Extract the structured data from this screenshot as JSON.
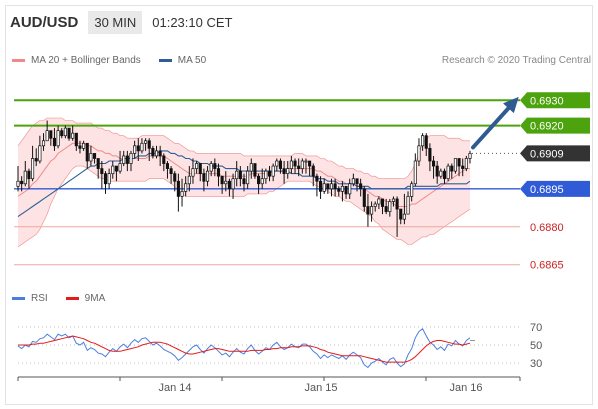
{
  "header": {
    "pair": "AUD/USD",
    "timeframe": "30 MIN",
    "clock": "01:23:10 CET"
  },
  "legend": {
    "bb": "MA 20 + Bollinger Bands",
    "ma50": "MA 50",
    "rsi": "RSI",
    "ma9": "9MA",
    "credit": "Research © 2020 Trading Central"
  },
  "colors": {
    "resistance": "#4ca30d",
    "support": "#f0a8a0",
    "pivot": "#2f5bd6",
    "current": "#333333",
    "candle": "#111111",
    "bb_fill": "#fde3e3",
    "bb_line": "#f08a8a",
    "ma50": "#2d5f96",
    "rsi": "#4a7fe0",
    "rsi_ma": "#e31b1b",
    "arrow": "#2f5a92"
  },
  "chart_data": [
    {
      "type": "candlestick",
      "ylim": [
        0.6855,
        0.694
      ],
      "x_ticks": [
        "Jan 14",
        "Jan 15",
        "Jan 16"
      ],
      "levels": [
        {
          "value": 0.693,
          "label": "0.6930",
          "kind": "resistance"
        },
        {
          "value": 0.692,
          "label": "0.6920",
          "kind": "resistance"
        },
        {
          "value": 0.6909,
          "label": "0.6909",
          "kind": "current"
        },
        {
          "value": 0.6895,
          "label": "0.6895",
          "kind": "pivot"
        },
        {
          "value": 0.688,
          "label": "0.6880",
          "kind": "support"
        },
        {
          "value": 0.6865,
          "label": "0.6865",
          "kind": "support"
        }
      ],
      "close": [
        0.6898,
        0.6897,
        0.6902,
        0.6899,
        0.6907,
        0.6906,
        0.6912,
        0.6914,
        0.6918,
        0.6915,
        0.6912,
        0.6918,
        0.6916,
        0.6919,
        0.6915,
        0.6917,
        0.6912,
        0.6911,
        0.6913,
        0.6906,
        0.6909,
        0.6907,
        0.6903,
        0.6901,
        0.6897,
        0.6901,
        0.6904,
        0.6902,
        0.6905,
        0.6908,
        0.6905,
        0.6909,
        0.6912,
        0.691,
        0.6913,
        0.6914,
        0.6911,
        0.6908,
        0.691,
        0.6908,
        0.6905,
        0.6903,
        0.6901,
        0.6898,
        0.6892,
        0.6894,
        0.6897,
        0.69,
        0.6903,
        0.6905,
        0.6901,
        0.6898,
        0.6902,
        0.6905,
        0.6903,
        0.69,
        0.6897,
        0.6898,
        0.6895,
        0.6899,
        0.6902,
        0.6899,
        0.6897,
        0.6902,
        0.6905,
        0.69,
        0.6897,
        0.6899,
        0.6902,
        0.69,
        0.6904,
        0.6906,
        0.6903,
        0.6901,
        0.6903,
        0.6906,
        0.6904,
        0.6903,
        0.6906,
        0.6906,
        0.6904,
        0.69,
        0.6898,
        0.6894,
        0.6897,
        0.6895,
        0.6897,
        0.6895,
        0.6894,
        0.6896,
        0.6893,
        0.6897,
        0.6899,
        0.6897,
        0.6895,
        0.6888,
        0.6885,
        0.6888,
        0.6889,
        0.6891,
        0.6888,
        0.6886,
        0.689,
        0.6891,
        0.6887,
        0.6883,
        0.6885,
        0.6892,
        0.6897,
        0.6906,
        0.6912,
        0.6916,
        0.6911,
        0.6906,
        0.6904,
        0.69,
        0.6902,
        0.6899,
        0.6904,
        0.6902,
        0.6907,
        0.6904,
        0.6903,
        0.6907,
        0.6909
      ],
      "high": [
        0.6904,
        0.69,
        0.6906,
        0.6903,
        0.6912,
        0.6911,
        0.6916,
        0.6917,
        0.6922,
        0.6918,
        0.6919,
        0.692,
        0.6919,
        0.692,
        0.6919,
        0.692,
        0.6913,
        0.6914,
        0.6914,
        0.691,
        0.6912,
        0.6909,
        0.6907,
        0.6906,
        0.6902,
        0.6903,
        0.6906,
        0.6904,
        0.691,
        0.691,
        0.691,
        0.691,
        0.6914,
        0.6915,
        0.6915,
        0.6915,
        0.6915,
        0.6912,
        0.6912,
        0.6912,
        0.6909,
        0.6906,
        0.6904,
        0.6902,
        0.6901,
        0.6899,
        0.69,
        0.6904,
        0.6907,
        0.6906,
        0.6903,
        0.6903,
        0.6904,
        0.6906,
        0.6907,
        0.6905,
        0.69,
        0.6902,
        0.6899,
        0.6901,
        0.6906,
        0.6904,
        0.6901,
        0.6904,
        0.6907,
        0.6905,
        0.6901,
        0.6903,
        0.6903,
        0.6904,
        0.6905,
        0.6907,
        0.6907,
        0.6906,
        0.6906,
        0.6908,
        0.6907,
        0.6907,
        0.6907,
        0.6907,
        0.6906,
        0.6905,
        0.6901,
        0.69,
        0.6899,
        0.6897,
        0.6899,
        0.6899,
        0.6896,
        0.6898,
        0.6896,
        0.6899,
        0.6901,
        0.6899,
        0.6899,
        0.6896,
        0.6893,
        0.689,
        0.689,
        0.6892,
        0.6891,
        0.6891,
        0.6891,
        0.6892,
        0.6892,
        0.6887,
        0.6893,
        0.6894,
        0.6898,
        0.6909,
        0.6915,
        0.6917,
        0.6917,
        0.6913,
        0.6908,
        0.6906,
        0.6903,
        0.6903,
        0.6905,
        0.6905,
        0.6907,
        0.6907,
        0.6907,
        0.6908,
        0.691
      ],
      "low": [
        0.6894,
        0.6894,
        0.6896,
        0.6895,
        0.6898,
        0.6904,
        0.6905,
        0.691,
        0.6914,
        0.6912,
        0.691,
        0.6911,
        0.6915,
        0.6915,
        0.6914,
        0.6914,
        0.691,
        0.6909,
        0.691,
        0.6903,
        0.6904,
        0.6905,
        0.6899,
        0.6895,
        0.6893,
        0.6895,
        0.6899,
        0.6898,
        0.6901,
        0.6904,
        0.6902,
        0.6902,
        0.6907,
        0.6906,
        0.6909,
        0.691,
        0.6906,
        0.6907,
        0.6907,
        0.6904,
        0.6902,
        0.6899,
        0.6897,
        0.6894,
        0.6886,
        0.6888,
        0.6892,
        0.6894,
        0.6897,
        0.6901,
        0.6898,
        0.6894,
        0.6896,
        0.69,
        0.69,
        0.6896,
        0.6893,
        0.6894,
        0.6892,
        0.6891,
        0.6896,
        0.6896,
        0.6894,
        0.6895,
        0.6899,
        0.6899,
        0.6893,
        0.6895,
        0.6897,
        0.6898,
        0.6898,
        0.6902,
        0.6901,
        0.6897,
        0.6899,
        0.6901,
        0.6901,
        0.69,
        0.6901,
        0.6901,
        0.69,
        0.6896,
        0.6892,
        0.6891,
        0.6893,
        0.6893,
        0.6892,
        0.6892,
        0.6892,
        0.689,
        0.6891,
        0.6891,
        0.6896,
        0.6894,
        0.6892,
        0.6886,
        0.688,
        0.6882,
        0.6886,
        0.6887,
        0.6885,
        0.6885,
        0.6884,
        0.6888,
        0.6876,
        0.6881,
        0.6881,
        0.6888,
        0.689,
        0.6896,
        0.6904,
        0.691,
        0.6908,
        0.6902,
        0.6899,
        0.6897,
        0.6899,
        0.6897,
        0.6898,
        0.6899,
        0.6901,
        0.69,
        0.69,
        0.6902,
        0.6905
      ],
      "ma20": [
        0.6892,
        0.6893,
        0.6894,
        0.6895,
        0.6897,
        0.6898,
        0.69,
        0.6902,
        0.6904,
        0.6906,
        0.6907,
        0.6909,
        0.691,
        0.6911,
        0.6912,
        0.6913,
        0.6913,
        0.6913,
        0.6913,
        0.6912,
        0.6912,
        0.6911,
        0.691,
        0.691,
        0.6909,
        0.6909,
        0.6908,
        0.6908,
        0.6907,
        0.6907,
        0.6907,
        0.6907,
        0.6907,
        0.6907,
        0.6907,
        0.6907,
        0.6908,
        0.6908,
        0.6908,
        0.6908,
        0.6908,
        0.6907,
        0.6906,
        0.6905,
        0.6904,
        0.6903,
        0.6902,
        0.6901,
        0.6901,
        0.6901,
        0.6901,
        0.6901,
        0.6901,
        0.6901,
        0.6901,
        0.6901,
        0.69,
        0.69,
        0.69,
        0.69,
        0.69,
        0.69,
        0.69,
        0.69,
        0.6901,
        0.6901,
        0.6901,
        0.6901,
        0.6901,
        0.6901,
        0.6902,
        0.6902,
        0.6902,
        0.6902,
        0.6903,
        0.6903,
        0.6903,
        0.6903,
        0.6903,
        0.6903,
        0.6903,
        0.6903,
        0.6902,
        0.6902,
        0.6901,
        0.69,
        0.69,
        0.6899,
        0.6898,
        0.6898,
        0.6897,
        0.6897,
        0.6897,
        0.6896,
        0.6896,
        0.6895,
        0.6894,
        0.6893,
        0.6892,
        0.6892,
        0.6891,
        0.689,
        0.689,
        0.6889,
        0.6888,
        0.6888,
        0.6888,
        0.6888,
        0.6889,
        0.6889,
        0.689,
        0.6891,
        0.6892,
        0.6893,
        0.6894,
        0.6895,
        0.6896,
        0.6897,
        0.6898,
        0.6899,
        0.69,
        0.6901,
        0.6902,
        0.6903,
        0.6903
      ],
      "bb_upper": [
        0.6912,
        0.6914,
        0.6916,
        0.6918,
        0.692,
        0.6921,
        0.6922,
        0.6922,
        0.6923,
        0.6923,
        0.6923,
        0.6923,
        0.6923,
        0.6922,
        0.6922,
        0.6922,
        0.6921,
        0.6921,
        0.6921,
        0.6921,
        0.6921,
        0.692,
        0.6919,
        0.6919,
        0.6918,
        0.6918,
        0.6917,
        0.6917,
        0.6916,
        0.6916,
        0.6915,
        0.6915,
        0.6915,
        0.6915,
        0.6916,
        0.6916,
        0.6916,
        0.6916,
        0.6916,
        0.6916,
        0.6916,
        0.6915,
        0.6914,
        0.6913,
        0.6913,
        0.6912,
        0.6911,
        0.691,
        0.691,
        0.6909,
        0.6909,
        0.6909,
        0.6909,
        0.6909,
        0.6909,
        0.6909,
        0.6909,
        0.6909,
        0.6909,
        0.6909,
        0.6909,
        0.6909,
        0.6908,
        0.6908,
        0.6908,
        0.6908,
        0.6908,
        0.6908,
        0.6908,
        0.6908,
        0.6908,
        0.6908,
        0.6908,
        0.6908,
        0.6908,
        0.6908,
        0.6909,
        0.6909,
        0.6909,
        0.6908,
        0.6908,
        0.6908,
        0.6908,
        0.6907,
        0.6907,
        0.6906,
        0.6906,
        0.6905,
        0.6904,
        0.6904,
        0.6903,
        0.6903,
        0.6903,
        0.6902,
        0.6902,
        0.6901,
        0.6901,
        0.69,
        0.69,
        0.6899,
        0.6899,
        0.6899,
        0.6899,
        0.6899,
        0.6899,
        0.6899,
        0.6899,
        0.69,
        0.6902,
        0.6905,
        0.6909,
        0.6913,
        0.6915,
        0.6916,
        0.6916,
        0.6916,
        0.6916,
        0.6916,
        0.6915,
        0.6915,
        0.6915,
        0.6915,
        0.6914,
        0.6914,
        0.6914
      ],
      "bb_lower": [
        0.6872,
        0.6873,
        0.6874,
        0.6875,
        0.6876,
        0.6877,
        0.6879,
        0.6882,
        0.6885,
        0.6889,
        0.6892,
        0.6895,
        0.6897,
        0.6899,
        0.6901,
        0.6903,
        0.6904,
        0.6904,
        0.6904,
        0.6903,
        0.6902,
        0.6901,
        0.69,
        0.6899,
        0.6899,
        0.6898,
        0.6898,
        0.6898,
        0.6898,
        0.6898,
        0.6898,
        0.6898,
        0.6898,
        0.6898,
        0.6898,
        0.6898,
        0.6899,
        0.6899,
        0.6899,
        0.6899,
        0.6899,
        0.6898,
        0.6897,
        0.6896,
        0.6894,
        0.6893,
        0.6892,
        0.6892,
        0.6892,
        0.6892,
        0.6892,
        0.6892,
        0.6892,
        0.6892,
        0.6892,
        0.6892,
        0.6892,
        0.6892,
        0.6892,
        0.6892,
        0.6892,
        0.6892,
        0.6892,
        0.6893,
        0.6893,
        0.6893,
        0.6893,
        0.6893,
        0.6893,
        0.6894,
        0.6894,
        0.6895,
        0.6896,
        0.6897,
        0.6898,
        0.6898,
        0.6898,
        0.6898,
        0.6898,
        0.6898,
        0.6898,
        0.6897,
        0.6896,
        0.6896,
        0.6895,
        0.6894,
        0.6893,
        0.6892,
        0.6892,
        0.6891,
        0.689,
        0.689,
        0.6889,
        0.6888,
        0.6887,
        0.6886,
        0.6885,
        0.6884,
        0.6882,
        0.6881,
        0.6879,
        0.6878,
        0.6877,
        0.6876,
        0.6875,
        0.6875,
        0.6874,
        0.6873,
        0.6873,
        0.6874,
        0.6875,
        0.6876,
        0.6876,
        0.6877,
        0.6877,
        0.6878,
        0.6879,
        0.688,
        0.6881,
        0.6882,
        0.6883,
        0.6884,
        0.6885,
        0.6886,
        0.6887
      ],
      "ma50": [
        0.6884,
        0.6885,
        0.6886,
        0.6887,
        0.6888,
        0.6889,
        0.689,
        0.6891,
        0.6892,
        0.6893,
        0.6894,
        0.6895,
        0.6896,
        0.6897,
        0.6898,
        0.6899,
        0.69,
        0.6901,
        0.6902,
        0.6903,
        0.6904,
        0.6904,
        0.6905,
        0.6905,
        0.6905,
        0.6906,
        0.6906,
        0.6906,
        0.6906,
        0.6907,
        0.6907,
        0.6907,
        0.6907,
        0.6908,
        0.6908,
        0.6908,
        0.6909,
        0.6909,
        0.6909,
        0.691,
        0.691,
        0.691,
        0.6909,
        0.6909,
        0.6908,
        0.6908,
        0.6907,
        0.6907,
        0.6906,
        0.6906,
        0.6905,
        0.6905,
        0.6905,
        0.6904,
        0.6904,
        0.6904,
        0.6904,
        0.6903,
        0.6903,
        0.6903,
        0.6903,
        0.6902,
        0.6902,
        0.6902,
        0.6902,
        0.6902,
        0.6902,
        0.6902,
        0.6902,
        0.6902,
        0.6902,
        0.6902,
        0.6902,
        0.6902,
        0.6902,
        0.6901,
        0.6901,
        0.6901,
        0.69,
        0.69,
        0.69,
        0.69,
        0.6899,
        0.6899,
        0.6899,
        0.6898,
        0.6898,
        0.6898,
        0.6897,
        0.6897,
        0.6897,
        0.6897,
        0.6897,
        0.6896,
        0.6896,
        0.6896,
        0.6896,
        0.6895,
        0.6895,
        0.6895,
        0.6895,
        0.6895,
        0.6895,
        0.6895,
        0.6895,
        0.6895,
        0.6895,
        0.6896,
        0.6896,
        0.6896,
        0.6896,
        0.6896,
        0.6896,
        0.6896,
        0.6896,
        0.6896,
        0.6897,
        0.6897,
        0.6897,
        0.6897,
        0.6897,
        0.6897,
        0.6897,
        0.6897,
        0.6898
      ]
    },
    {
      "type": "line",
      "ylim": [
        20,
        80
      ],
      "y_ticks": [
        70,
        50,
        30
      ],
      "rsi": [
        49,
        46,
        50,
        48,
        54,
        53,
        57,
        58,
        62,
        59,
        56,
        62,
        60,
        62,
        58,
        60,
        52,
        50,
        53,
        44,
        47,
        45,
        41,
        40,
        37,
        42,
        46,
        43,
        48,
        51,
        47,
        52,
        56,
        53,
        57,
        58,
        54,
        50,
        52,
        49,
        45,
        43,
        41,
        38,
        33,
        36,
        40,
        44,
        48,
        50,
        45,
        41,
        46,
        50,
        47,
        43,
        39,
        41,
        37,
        42,
        46,
        42,
        40,
        46,
        50,
        44,
        40,
        43,
        47,
        45,
        50,
        53,
        48,
        45,
        47,
        51,
        48,
        47,
        51,
        51,
        48,
        43,
        40,
        35,
        39,
        36,
        39,
        37,
        35,
        38,
        34,
        39,
        42,
        39,
        36,
        28,
        25,
        30,
        32,
        35,
        31,
        28,
        34,
        36,
        30,
        26,
        29,
        39,
        46,
        58,
        65,
        68,
        60,
        53,
        50,
        45,
        48,
        44,
        51,
        49,
        55,
        51,
        49,
        55,
        58
      ],
      "ma9": [
        50,
        50,
        50,
        50,
        51,
        51,
        52,
        52,
        53,
        54,
        55,
        56,
        57,
        58,
        59,
        60,
        59,
        58,
        57,
        55,
        53,
        52,
        50,
        48,
        46,
        44,
        43,
        43,
        43,
        44,
        45,
        46,
        47,
        48,
        50,
        51,
        52,
        53,
        53,
        53,
        52,
        51,
        49,
        47,
        45,
        43,
        41,
        40,
        40,
        41,
        42,
        43,
        44,
        45,
        46,
        46,
        45,
        44,
        43,
        43,
        43,
        43,
        43,
        43,
        44,
        44,
        44,
        44,
        45,
        45,
        46,
        46,
        47,
        47,
        47,
        48,
        48,
        48,
        49,
        49,
        49,
        48,
        47,
        45,
        44,
        42,
        41,
        40,
        39,
        38,
        38,
        38,
        38,
        38,
        38,
        37,
        36,
        35,
        34,
        33,
        32,
        31,
        31,
        31,
        31,
        31,
        31,
        32,
        34,
        37,
        41,
        45,
        49,
        52,
        54,
        55,
        55,
        54,
        53,
        52,
        51,
        51,
        50,
        51,
        52
      ]
    }
  ]
}
